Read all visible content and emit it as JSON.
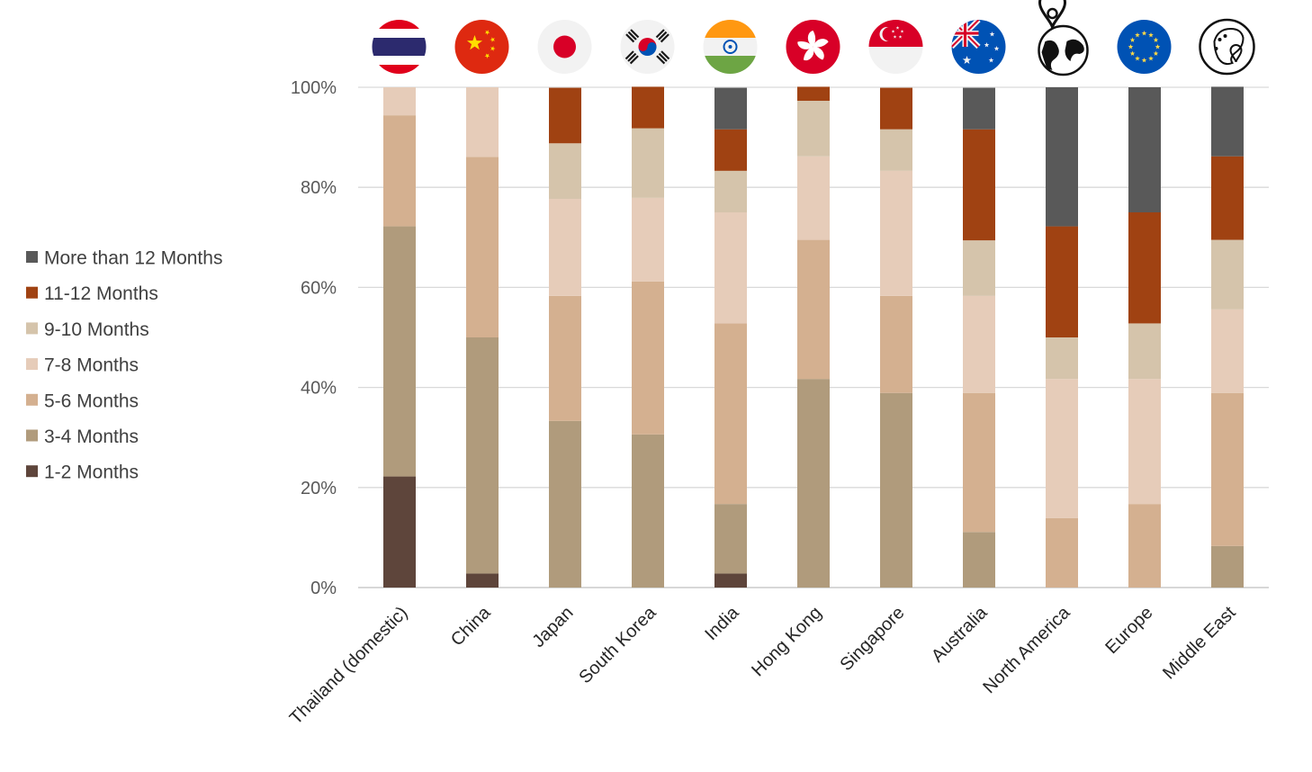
{
  "chart_data": {
    "type": "bar",
    "stacked": true,
    "percent": true,
    "title": "",
    "xlabel": "",
    "ylabel": "",
    "ylim": [
      0,
      100
    ],
    "yticks": [
      "0%",
      "20%",
      "40%",
      "60%",
      "80%",
      "100%"
    ],
    "grid": true,
    "legend_position": "left",
    "categories": [
      "Thailand (domestic)",
      "China",
      "Japan",
      "South Korea",
      "India",
      "Hong Kong",
      "Singapore",
      "Australia",
      "North America",
      "Europe",
      "Middle East"
    ],
    "category_icons": [
      "thailand-flag-icon",
      "china-flag-icon",
      "japan-flag-icon",
      "south-korea-flag-icon",
      "india-flag-icon",
      "hong-kong-flag-icon",
      "singapore-flag-icon",
      "australia-flag-icon",
      "north-america-globe-pin-icon",
      "europe-flag-icon",
      "middle-east-map-icon"
    ],
    "series": [
      {
        "name": "1-2 Months",
        "color": "#5e453b",
        "values": [
          22.2,
          2.8,
          0,
          0,
          2.8,
          0,
          0,
          0,
          0,
          0,
          0
        ]
      },
      {
        "name": "3-4 Months",
        "color": "#b09b7c",
        "values": [
          50.0,
          47.2,
          33.3,
          30.6,
          13.9,
          41.7,
          38.9,
          11.1,
          0,
          0,
          8.3
        ]
      },
      {
        "name": "5-6 Months",
        "color": "#d4b090",
        "values": [
          22.2,
          36.1,
          25.0,
          30.6,
          36.1,
          27.8,
          19.4,
          27.8,
          13.9,
          16.7,
          30.6
        ]
      },
      {
        "name": "7-8 Months",
        "color": "#e6ccb9",
        "values": [
          5.6,
          13.9,
          19.4,
          16.7,
          22.2,
          16.7,
          25.0,
          19.4,
          27.8,
          25.0,
          16.7
        ]
      },
      {
        "name": "9-10 Months",
        "color": "#d5c4ab",
        "values": [
          0,
          0,
          11.1,
          13.9,
          8.3,
          11.1,
          8.3,
          11.1,
          8.3,
          11.1,
          13.9
        ]
      },
      {
        "name": "11-12 Months",
        "color": "#a04212",
        "values": [
          0,
          0,
          11.1,
          8.3,
          8.3,
          2.8,
          8.3,
          22.2,
          22.2,
          22.2,
          16.7
        ]
      },
      {
        "name": "More than 12 Months",
        "color": "#595959",
        "values": [
          0,
          0,
          0,
          0,
          8.3,
          0,
          0,
          8.3,
          27.8,
          25.0,
          13.9
        ]
      }
    ]
  }
}
